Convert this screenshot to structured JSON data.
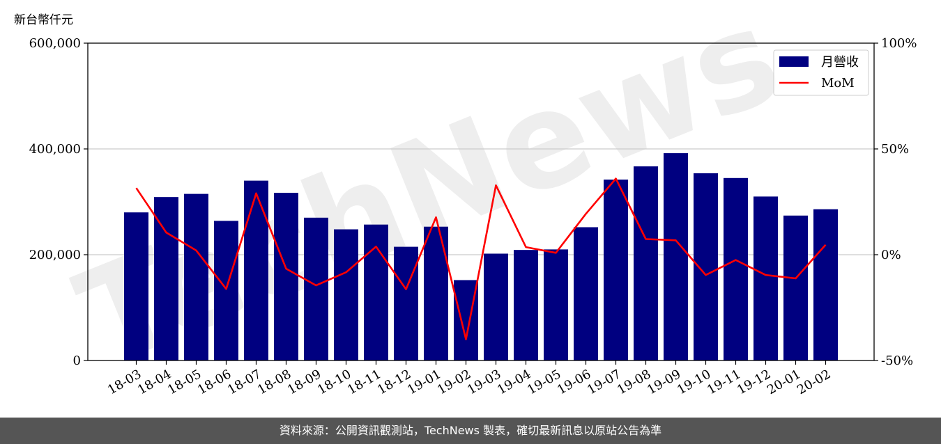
{
  "unit_label": "新台幣仟元",
  "footer_text": "資料來源：公開資訊觀測站，TechNews 製表，確切最新訊息以原站公告為準",
  "watermark": "TechNews",
  "colors": {
    "bars": "#000080",
    "line": "#ff0000",
    "grid": "#cccccc",
    "watermark": "#d9d9d9"
  },
  "chart_data": {
    "type": "bar",
    "categories": [
      "18-03",
      "18-04",
      "18-05",
      "18-06",
      "18-07",
      "18-08",
      "18-09",
      "18-10",
      "18-11",
      "18-12",
      "19-01",
      "19-02",
      "19-03",
      "19-04",
      "19-05",
      "19-06",
      "19-07",
      "19-08",
      "19-09",
      "19-10",
      "19-11",
      "19-12",
      "20-01",
      "20-02"
    ],
    "series": [
      {
        "name": "月營收",
        "type": "bar",
        "axis": "left",
        "values": [
          280000,
          309000,
          315000,
          264000,
          340000,
          317000,
          270000,
          248000,
          257000,
          215000,
          253000,
          152000,
          202000,
          209000,
          210000,
          252000,
          342000,
          367000,
          392000,
          354000,
          345000,
          310000,
          274000,
          286000
        ]
      },
      {
        "name": "MoM",
        "type": "line",
        "axis": "right",
        "values": [
          31.5,
          10.5,
          2.0,
          -16.2,
          29.0,
          -6.6,
          -14.5,
          -8.3,
          3.8,
          -16.3,
          17.7,
          -40.0,
          32.8,
          3.6,
          0.9,
          19.3,
          36.0,
          7.4,
          6.8,
          -9.6,
          -2.5,
          -9.6,
          -11.2,
          4.7
        ]
      }
    ],
    "ylim_left": [
      0,
      600000
    ],
    "ylim_right": [
      -50,
      100
    ],
    "yticks_left": [
      "0",
      "200,000",
      "400,000",
      "600,000"
    ],
    "yticks_right": [
      "-50%",
      "0%",
      "50%",
      "100%"
    ],
    "grid": "horizontal",
    "legend_position": "top-right"
  }
}
